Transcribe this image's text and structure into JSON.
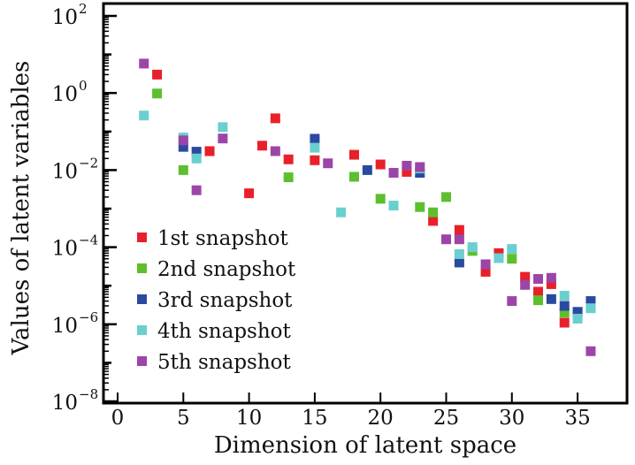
{
  "chart_data": {
    "type": "scatter",
    "xlabel": "Dimension of latent space",
    "ylabel": "Values of latent variables",
    "xlim": [
      -1,
      38
    ],
    "ylim": [
      1e-08,
      100.0
    ],
    "yscale": "log",
    "grid": false,
    "legend_position": "bottom-left",
    "x_ticks": [
      0,
      5,
      10,
      15,
      20,
      25,
      30,
      35
    ],
    "y_ticks": [
      {
        "exp": 2
      },
      {
        "exp": 0
      },
      {
        "exp": -2
      },
      {
        "exp": -4
      },
      {
        "exp": -6
      },
      {
        "exp": -8
      }
    ],
    "series": [
      {
        "name": "1st snapshot",
        "color": "#e8202a",
        "points": [
          [
            3,
            3.0
          ],
          [
            7,
            0.031
          ],
          [
            10,
            0.0025
          ],
          [
            11,
            0.043
          ],
          [
            12,
            0.22
          ],
          [
            13,
            0.019
          ],
          [
            15,
            0.018
          ],
          [
            18,
            0.025
          ],
          [
            20,
            0.014
          ],
          [
            22,
            0.009
          ],
          [
            24,
            0.00048
          ],
          [
            26,
            0.00028
          ],
          [
            28,
            2.3e-05
          ],
          [
            29,
            7e-05
          ],
          [
            31,
            1.7e-05
          ],
          [
            32,
            7e-06
          ],
          [
            33,
            1.1e-05
          ],
          [
            34,
            1.1e-06
          ]
        ]
      },
      {
        "name": "2nd snapshot",
        "color": "#5dbf2e",
        "points": [
          [
            3,
            0.97
          ],
          [
            5,
            0.01
          ],
          [
            13,
            0.0065
          ],
          [
            18,
            0.0067
          ],
          [
            20,
            0.0018
          ],
          [
            23,
            0.0011
          ],
          [
            24,
            0.0008
          ],
          [
            25,
            0.002
          ],
          [
            27,
            8e-05
          ],
          [
            30,
            5e-05
          ],
          [
            32,
            4.2e-06
          ],
          [
            34,
            2e-06
          ],
          [
            35,
            2e-06
          ]
        ]
      },
      {
        "name": "3rd snapshot",
        "color": "#2a4aa0",
        "points": [
          [
            5,
            0.04
          ],
          [
            6,
            0.03
          ],
          [
            15,
            0.065
          ],
          [
            19,
            0.01
          ],
          [
            23,
            0.0085
          ],
          [
            26,
            4e-05
          ],
          [
            33,
            4.5e-06
          ],
          [
            34,
            3e-06
          ],
          [
            35,
            2.1e-06
          ],
          [
            36,
            4e-06
          ]
        ]
      },
      {
        "name": "4th snapshot",
        "color": "#6acfcf",
        "points": [
          [
            2,
            0.26
          ],
          [
            5,
            0.07
          ],
          [
            6,
            0.02
          ],
          [
            8,
            0.13
          ],
          [
            15,
            0.038
          ],
          [
            17,
            0.0008
          ],
          [
            21,
            0.0012
          ],
          [
            23,
            0.011
          ],
          [
            26,
            6.6e-05
          ],
          [
            27,
            0.0001
          ],
          [
            29,
            5.2e-05
          ],
          [
            30,
            9e-05
          ],
          [
            34,
            5.5e-06
          ],
          [
            35,
            1.4e-06
          ],
          [
            36,
            2.6e-06
          ]
        ]
      },
      {
        "name": "5th snapshot",
        "color": "#9c45a8",
        "points": [
          [
            2,
            5.8
          ],
          [
            5,
            0.059
          ],
          [
            6,
            0.003
          ],
          [
            8,
            0.066
          ],
          [
            12,
            0.031
          ],
          [
            16,
            0.015
          ],
          [
            21,
            0.0085
          ],
          [
            22,
            0.013
          ],
          [
            23,
            0.012
          ],
          [
            25,
            0.00016
          ],
          [
            26,
            0.00016
          ],
          [
            28,
            3.6e-05
          ],
          [
            30,
            4e-06
          ],
          [
            31,
            1.05e-05
          ],
          [
            32,
            1.5e-05
          ],
          [
            33,
            1.6e-05
          ],
          [
            36,
            2e-07
          ]
        ]
      }
    ]
  }
}
